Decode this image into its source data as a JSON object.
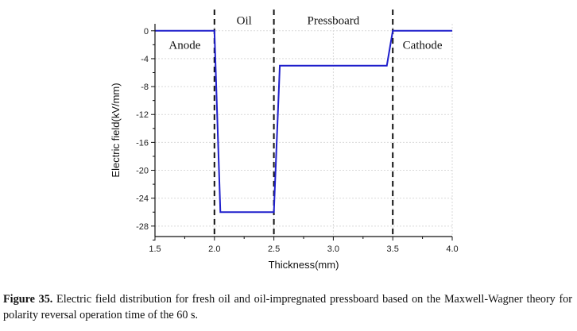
{
  "chart_data": {
    "type": "line",
    "xlabel": "Thickness(mm)",
    "ylabel": "Electric field(kV/mm)",
    "xlim": [
      1.5,
      4.0
    ],
    "ylim": [
      -29.5,
      1
    ],
    "x_ticks": [
      1.5,
      2.0,
      2.5,
      3.0,
      3.5,
      4.0
    ],
    "x_tick_labels": [
      "1.5",
      "2.0",
      "2.5",
      "3.0",
      "3.5",
      "4.0"
    ],
    "y_ticks": [
      0,
      -4,
      -8,
      -12,
      -16,
      -20,
      -24,
      -28
    ],
    "y_tick_labels": [
      "0",
      "-4",
      "-8",
      "-12",
      "-16",
      "-20",
      "-24",
      "-28"
    ],
    "grid": true,
    "series": [
      {
        "color": "#1f1fcc",
        "x": [
          1.5,
          2.0,
          2.05,
          2.5,
          2.55,
          3.45,
          3.5,
          4.0
        ],
        "y": [
          0,
          0,
          -26,
          -26,
          -5,
          -5,
          0,
          0
        ]
      }
    ],
    "boundaries": [
      2.0,
      2.5,
      3.5
    ],
    "region_labels": [
      {
        "text": "Anode",
        "x": 1.75,
        "y": -2
      },
      {
        "text": "Oil",
        "x": 2.25,
        "y": 1.5
      },
      {
        "text": "Pressboard",
        "x": 3.0,
        "y": 1.5
      },
      {
        "text": "Cathode",
        "x": 3.75,
        "y": -2
      }
    ]
  },
  "caption": {
    "label": "Figure 35.",
    "text": "Electric field distribution for fresh oil and oil-impregnated pressboard based on the Maxwell-Wagner theory for polarity reversal operation time of the 60 s."
  }
}
